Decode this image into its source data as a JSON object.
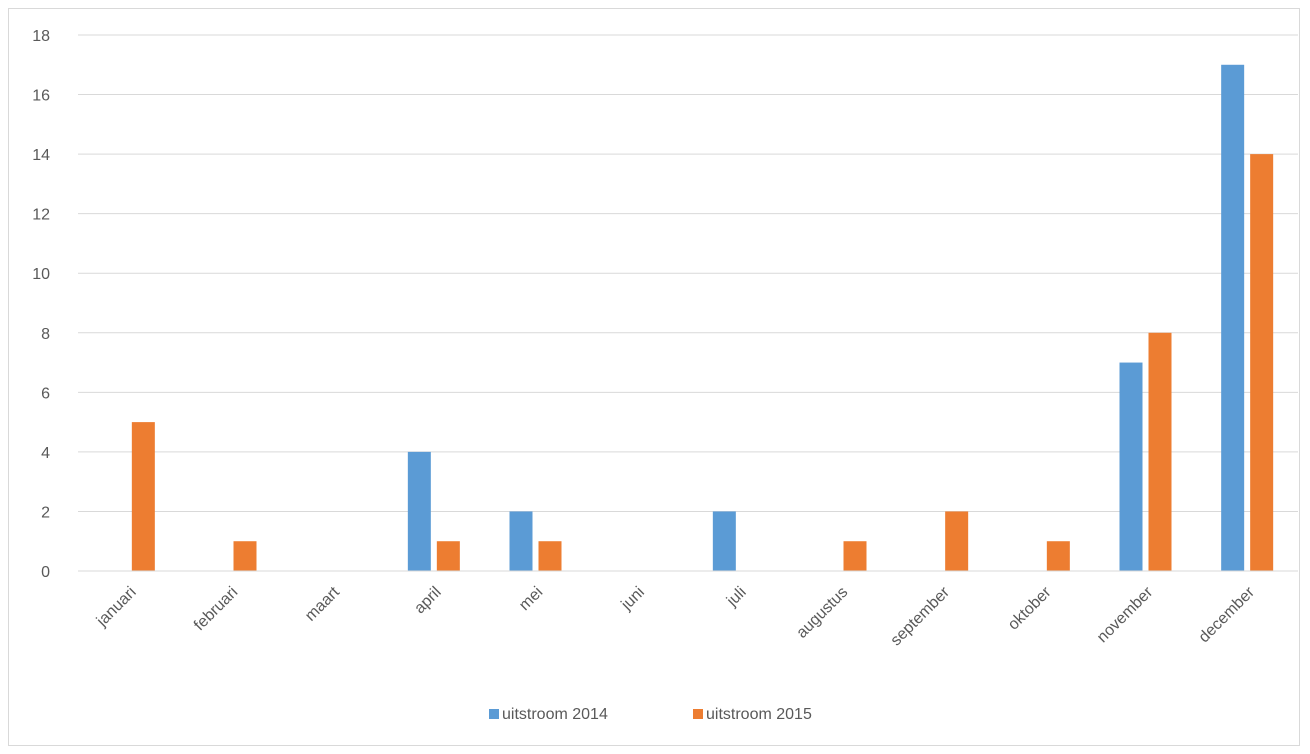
{
  "chart_data": {
    "type": "bar",
    "title": "",
    "xlabel": "",
    "ylabel": "",
    "categories": [
      "januari",
      "februari",
      "maart",
      "april",
      "mei",
      "juni",
      "juli",
      "augustus",
      "september",
      "oktober",
      "november",
      "december"
    ],
    "series": [
      {
        "name": "uitstroom 2014",
        "color": "#5b9bd5",
        "values": [
          0,
          0,
          0,
          4,
          2,
          0,
          2,
          0,
          0,
          0,
          7,
          17
        ]
      },
      {
        "name": "uitstroom 2015",
        "color": "#ed7d31",
        "values": [
          5,
          1,
          0,
          1,
          1,
          0,
          0,
          1,
          2,
          1,
          8,
          14
        ]
      }
    ],
    "ylim": [
      0,
      18
    ],
    "yticks": [
      0,
      2,
      4,
      6,
      8,
      10,
      12,
      14,
      16,
      18
    ],
    "grid": true,
    "legend": "bottom-center"
  }
}
